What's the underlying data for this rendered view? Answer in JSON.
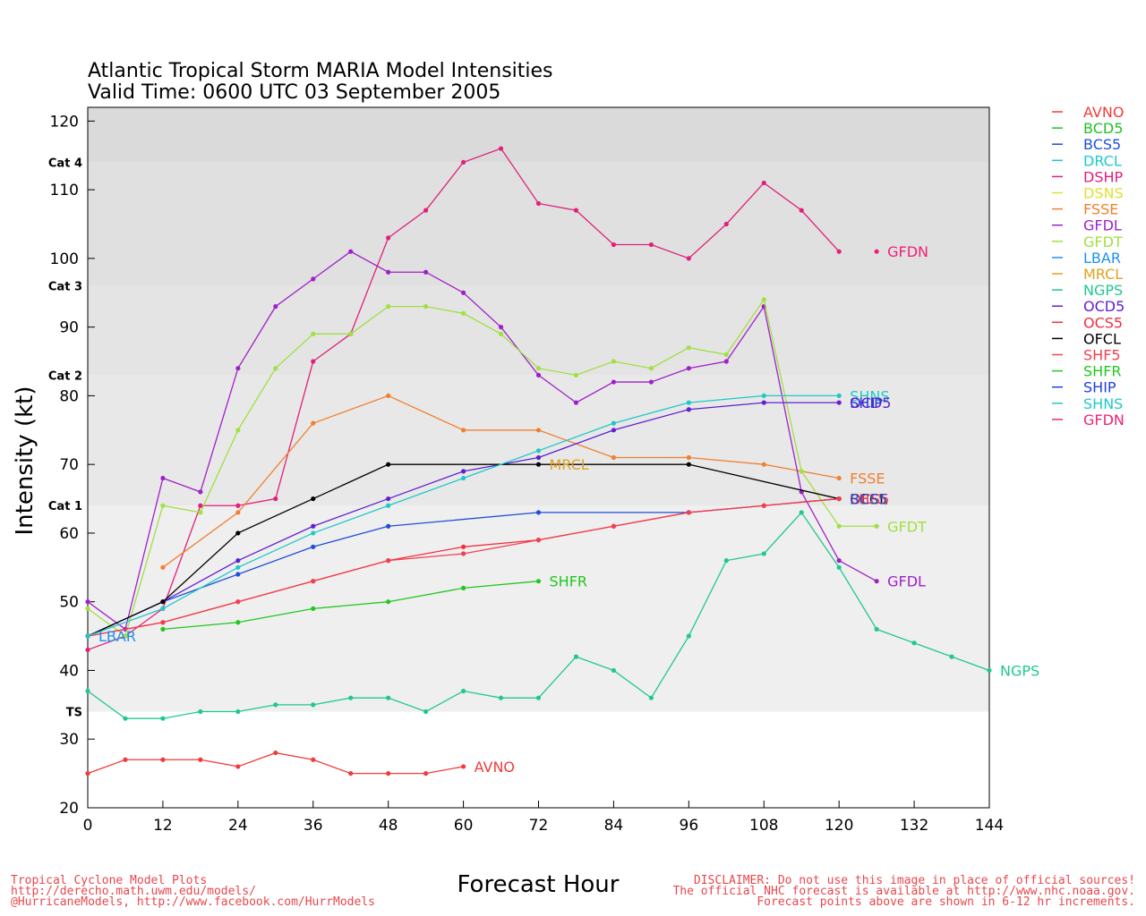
{
  "chart_data": {
    "type": "line",
    "title": "Atlantic Tropical Storm MARIA Model Intensities",
    "subtitle": "Valid Time: 0600 UTC 03 September 2005",
    "xlabel": "Forecast Hour",
    "ylabel": "Intensity (kt)",
    "xlim": [
      0,
      144
    ],
    "ylim": [
      20,
      122
    ],
    "xticks": [
      0,
      12,
      24,
      36,
      48,
      60,
      72,
      84,
      96,
      108,
      120,
      132,
      144
    ],
    "yticks": [
      20,
      30,
      40,
      50,
      60,
      70,
      80,
      90,
      100,
      110,
      120
    ],
    "bands": [
      {
        "label": "TS",
        "from": 34,
        "to": 64,
        "color": "#efefef"
      },
      {
        "label": "Cat 1",
        "from": 64,
        "to": 83,
        "color": "#e8e8e8"
      },
      {
        "label": "Cat 2",
        "from": 83,
        "to": 96,
        "color": "#e4e4e4"
      },
      {
        "label": "Cat 3",
        "from": 96,
        "to": 114,
        "color": "#e0e0e0"
      },
      {
        "label": "Cat 4",
        "from": 114,
        "to": 122,
        "color": "#dadada"
      }
    ],
    "series": [
      {
        "name": "AVNO",
        "color": "#f03c3c",
        "label": "AVNO",
        "x": [
          0,
          6,
          12,
          18,
          24,
          30,
          36,
          42,
          48,
          54,
          60
        ],
        "y": [
          25,
          27,
          27,
          27,
          26,
          28,
          27,
          25,
          25,
          25,
          26
        ]
      },
      {
        "name": "BCD5",
        "color": "#22c022",
        "label": "",
        "x": [],
        "y": []
      },
      {
        "name": "BCS5",
        "color": "#1f4fd8",
        "label": "",
        "x": [
          0,
          12,
          24,
          36,
          48,
          72,
          96,
          120
        ],
        "y": [
          45,
          50,
          54,
          58,
          61,
          63,
          63,
          65
        ]
      },
      {
        "name": "DRCL",
        "color": "#20c8c8",
        "label": "",
        "x": [],
        "y": []
      },
      {
        "name": "DSHP",
        "color": "#e0207a",
        "label": "",
        "x": [
          0,
          6,
          12,
          18,
          24,
          30,
          36,
          42,
          48,
          54,
          60,
          66,
          72,
          78,
          84,
          90,
          96,
          102,
          108,
          114,
          120
        ],
        "y": [
          43,
          45,
          49,
          64,
          64,
          65,
          85,
          89,
          103,
          107,
          114,
          116,
          108,
          107,
          102,
          102,
          100,
          105,
          111,
          107,
          101
        ]
      },
      {
        "name": "DSNS",
        "color": "#e0e030",
        "label": "",
        "x": [],
        "y": []
      },
      {
        "name": "FSSE",
        "color": "#f08030",
        "label": "FSSE",
        "x": [
          12,
          24,
          36,
          48,
          60,
          72,
          84,
          96,
          108,
          120
        ],
        "y": [
          55,
          63,
          76,
          80,
          75,
          75,
          71,
          71,
          70,
          68
        ]
      },
      {
        "name": "GFDL",
        "color": "#a020c8",
        "label": "GFDL",
        "x": [
          0,
          6,
          12,
          18,
          24,
          30,
          36,
          42,
          48,
          54,
          60,
          66,
          72,
          78,
          84,
          90,
          96,
          102,
          108,
          114,
          120,
          126
        ],
        "y": [
          50,
          46,
          68,
          66,
          84,
          93,
          97,
          101,
          98,
          98,
          95,
          90,
          83,
          79,
          82,
          82,
          84,
          85,
          93,
          66,
          56,
          53
        ]
      },
      {
        "name": "GFDT",
        "color": "#a0e040",
        "label": "GFDT",
        "x": [
          0,
          6,
          12,
          18,
          24,
          30,
          36,
          42,
          48,
          54,
          60,
          66,
          72,
          78,
          84,
          90,
          96,
          102,
          108,
          114,
          120,
          126
        ],
        "y": [
          49,
          45,
          64,
          63,
          75,
          84,
          89,
          89,
          93,
          93,
          92,
          89,
          84,
          83,
          85,
          84,
          87,
          86,
          94,
          69,
          61,
          61
        ]
      },
      {
        "name": "LBAR",
        "color": "#2090f0",
        "label": "LBAR",
        "x": [
          0
        ],
        "y": [
          45
        ]
      },
      {
        "name": "MRCL",
        "color": "#e0a020",
        "label": "MRCL",
        "x": [],
        "y": []
      },
      {
        "name": "NGPS",
        "color": "#20c890",
        "label": "NGPS",
        "x": [
          0,
          6,
          12,
          18,
          24,
          30,
          36,
          42,
          48,
          54,
          60,
          66,
          72,
          78,
          84,
          90,
          96,
          102,
          108,
          114,
          120,
          126,
          132,
          138,
          144
        ],
        "y": [
          37,
          33,
          33,
          34,
          34,
          35,
          35,
          36,
          36,
          34,
          37,
          36,
          36,
          42,
          40,
          36,
          45,
          56,
          57,
          63,
          55,
          46,
          44,
          42,
          40
        ]
      },
      {
        "name": "OCD5",
        "color": "#6020d0",
        "label": "",
        "x": [
          0,
          12,
          24,
          36,
          48,
          60,
          72,
          84,
          96,
          108,
          120
        ],
        "y": [
          45,
          50,
          56,
          61,
          65,
          69,
          71,
          75,
          78,
          79,
          79
        ]
      },
      {
        "name": "OCS5",
        "color": "#f03040",
        "label": "",
        "x": [
          0,
          12,
          24,
          36,
          48,
          60,
          72,
          84,
          96,
          108,
          120
        ],
        "y": [
          45,
          47,
          50,
          53,
          56,
          58,
          59,
          61,
          63,
          64,
          65
        ]
      },
      {
        "name": "OFCL",
        "color": "#000000",
        "label": "",
        "x": [
          0,
          12,
          24,
          36,
          48,
          72,
          96,
          120
        ],
        "y": [
          45,
          50,
          60,
          65,
          70,
          70,
          70,
          65
        ]
      },
      {
        "name": "SHF5",
        "color": "#f04050",
        "label": "",
        "x": [
          0,
          12,
          24,
          36,
          48,
          60,
          72,
          84,
          96,
          108,
          120
        ],
        "y": [
          45,
          47,
          50,
          53,
          56,
          57,
          59,
          61,
          63,
          64,
          65
        ]
      },
      {
        "name": "SHFR",
        "color": "#20c820",
        "label": "SHFR",
        "x": [
          12,
          24,
          36,
          48,
          60,
          72
        ],
        "y": [
          46,
          47,
          49,
          50,
          52,
          53
        ]
      },
      {
        "name": "SHIP",
        "color": "#2040e0",
        "label": "",
        "x": [],
        "y": []
      },
      {
        "name": "SHNS",
        "color": "#20c8c8",
        "label": "SHNS",
        "x": [
          0,
          12,
          24,
          36,
          48,
          60,
          72,
          84,
          96,
          108,
          120
        ],
        "y": [
          45,
          49,
          55,
          60,
          64,
          68,
          72,
          76,
          79,
          80,
          80
        ]
      },
      {
        "name": "GFDN",
        "color": "#f0207a",
        "label": "GFDN",
        "x": [
          126
        ],
        "y": [
          101
        ]
      }
    ],
    "end_labels": [
      {
        "text": "GFDN",
        "x": 126,
        "y": 101,
        "color": "#f0207a"
      },
      {
        "text": "SHNS",
        "x": 120,
        "y": 80,
        "color": "#20c8c8"
      },
      {
        "text": "SHIP",
        "x": 120,
        "y": 79,
        "color": "#2040e0"
      },
      {
        "text": "OCD5",
        "x": 120,
        "y": 79,
        "color": "#6020d0"
      },
      {
        "text": "MRCL",
        "x": 72,
        "y": 70,
        "color": "#e0a020"
      },
      {
        "text": "FSSE",
        "x": 120,
        "y": 68,
        "color": "#f08030"
      },
      {
        "text": "OFCL",
        "x": 120,
        "y": 65,
        "color": "#000000"
      },
      {
        "text": "OCS5",
        "x": 120,
        "y": 65,
        "color": "#f03040"
      },
      {
        "text": "SHF5",
        "x": 120,
        "y": 65,
        "color": "#f04050"
      },
      {
        "text": "BCS5",
        "x": 120,
        "y": 65,
        "color": "#1f4fd8"
      },
      {
        "text": "GFDT",
        "x": 126,
        "y": 61,
        "color": "#a0e040"
      },
      {
        "text": "SHFR",
        "x": 72,
        "y": 53,
        "color": "#20c820"
      },
      {
        "text": "GFDL",
        "x": 126,
        "y": 53,
        "color": "#a020c8"
      },
      {
        "text": "LBAR",
        "x": 0,
        "y": 45,
        "color": "#2090f0"
      },
      {
        "text": "NGPS",
        "x": 144,
        "y": 40,
        "color": "#20c890"
      },
      {
        "text": "AVNO",
        "x": 60,
        "y": 26,
        "color": "#f03c3c"
      }
    ],
    "legend": {
      "placement": "right",
      "entries": [
        {
          "name": "AVNO",
          "color": "#f03c3c"
        },
        {
          "name": "BCD5",
          "color": "#22c022"
        },
        {
          "name": "BCS5",
          "color": "#1f4fd8"
        },
        {
          "name": "DRCL",
          "color": "#20c8c8"
        },
        {
          "name": "DSHP",
          "color": "#e0207a"
        },
        {
          "name": "DSNS",
          "color": "#e0e030"
        },
        {
          "name": "FSSE",
          "color": "#f08030"
        },
        {
          "name": "GFDL",
          "color": "#a020c8"
        },
        {
          "name": "GFDT",
          "color": "#a0e040"
        },
        {
          "name": "LBAR",
          "color": "#2090f0"
        },
        {
          "name": "MRCL",
          "color": "#e0a020"
        },
        {
          "name": "NGPS",
          "color": "#20c890"
        },
        {
          "name": "OCD5",
          "color": "#6020d0"
        },
        {
          "name": "OCS5",
          "color": "#f03040"
        },
        {
          "name": "OFCL",
          "color": "#000000"
        },
        {
          "name": "SHF5",
          "color": "#f04050"
        },
        {
          "name": "SHFR",
          "color": "#20c820"
        },
        {
          "name": "SHIP",
          "color": "#2040e0"
        },
        {
          "name": "SHNS",
          "color": "#20c8c8"
        },
        {
          "name": "GFDN",
          "color": "#f0207a"
        }
      ]
    }
  },
  "footer": {
    "left": [
      "Tropical Cyclone Model Plots",
      "http://derecho.math.uwm.edu/models/",
      "@HurricaneModels, http://www.facebook.com/HurrModels"
    ],
    "right": [
      "DISCLAIMER: Do not use this image in place of official sources!",
      "The official NHC forecast is available at http://www.nhc.noaa.gov.",
      "Forecast points above are shown in 6-12 hr increments."
    ]
  }
}
